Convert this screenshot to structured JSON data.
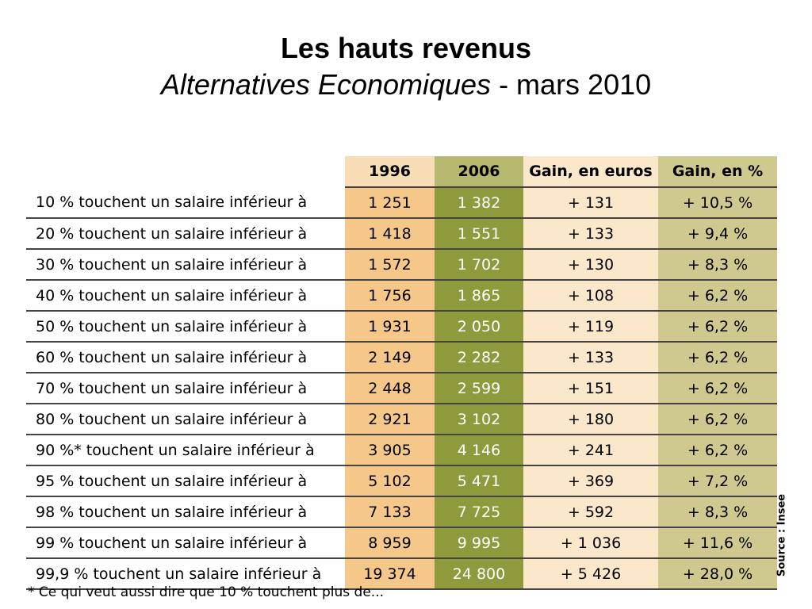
{
  "title": "Les hauts revenus",
  "subtitle_publication": "Alternatives Economiques",
  "subtitle_rest": " - mars 2010",
  "table": {
    "headers": [
      "",
      "1996",
      "2006",
      "Gain, en euros",
      "Gain, en %"
    ],
    "rows": [
      [
        "10 % touchent un salaire inférieur à",
        "1 251",
        "1 382",
        "+ 131",
        "+ 10,5 %"
      ],
      [
        "20 % touchent un salaire inférieur à",
        "1 418",
        "1 551",
        "+ 133",
        "+ 9,4 %"
      ],
      [
        "30 % touchent un salaire inférieur à",
        "1 572",
        "1 702",
        "+ 130",
        "+ 8,3 %"
      ],
      [
        "40 % touchent un salaire inférieur à",
        "1 756",
        "1 865",
        "+ 108",
        "+ 6,2 %"
      ],
      [
        "50 % touchent un salaire inférieur à",
        "1 931",
        "2 050",
        "+ 119",
        "+ 6,2 %"
      ],
      [
        "60 % touchent un salaire inférieur à",
        "2 149",
        "2 282",
        "+ 133",
        "+ 6,2 %"
      ],
      [
        "70 % touchent un salaire inférieur à",
        "2 448",
        "2 599",
        "+ 151",
        "+ 6,2 %"
      ],
      [
        "80 % touchent un salaire inférieur à",
        "2 921",
        "3 102",
        "+ 180",
        "+ 6,2 %"
      ],
      [
        "90 %* touchent un salaire inférieur à",
        "3 905",
        "4 146",
        "+ 241",
        "+ 6,2 %"
      ],
      [
        "95 % touchent un salaire inférieur à",
        "5 102",
        "5 471",
        "+ 369",
        "+ 7,2 %"
      ],
      [
        "98 % touchent un salaire inférieur à",
        "7 133",
        "7 725",
        "+ 592",
        "+ 8,3 %"
      ],
      [
        "99 % touchent un salaire inférieur à",
        "8 959",
        "9 995",
        "+ 1 036",
        "+ 11,6 %"
      ],
      [
        "99,9 % touchent un salaire inférieur à",
        "19 374",
        "24 800",
        "+ 5 426",
        "+ 28,0 %"
      ]
    ]
  },
  "footnote": "* Ce qui veut aussi dire que 10 % touchent plus de...",
  "source": "Source : Insee",
  "colors": {
    "col_1996": "#f5c88a",
    "col_2006": "#8e9a3b",
    "col_gain": "#fbe7c9",
    "col_pct": "#cfc990"
  }
}
